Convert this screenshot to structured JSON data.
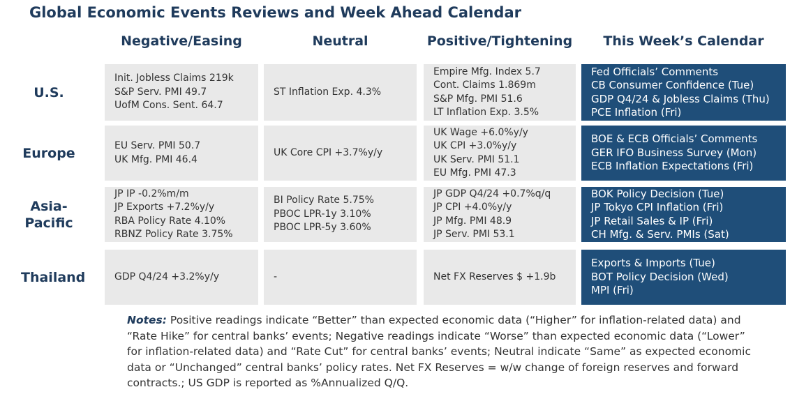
{
  "title": "Global Economic Events Reviews and Week Ahead Calendar",
  "table": {
    "columns": [
      "Negative/Easing",
      "Neutral",
      "Positive/Tightening",
      "This Week’s Calendar"
    ],
    "rows": [
      {
        "region": "U.S.",
        "cells": [
          [
            "Init. Jobless Claims 219k",
            "S&P Serv. PMI 49.7",
            "UofM Cons. Sent. 64.7"
          ],
          [
            "ST Inflation Exp. 4.3%"
          ],
          [
            "Empire Mfg. Index 5.7",
            "Cont. Claims 1.869m",
            "S&P Mfg. PMI 51.6",
            "LT Inflation Exp. 3.5%"
          ],
          [
            "Fed Officials’ Comments",
            "CB Consumer Confidence (Tue)",
            "GDP Q4/24 & Jobless Claims (Thu)",
            "PCE Inflation (Fri)"
          ]
        ]
      },
      {
        "region": "Europe",
        "cells": [
          [
            "EU Serv. PMI 50.7",
            "UK Mfg. PMI 46.4"
          ],
          [
            "UK Core CPI +3.7%y/y"
          ],
          [
            "UK Wage +6.0%y/y",
            "UK CPI +3.0%y/y",
            "UK Serv. PMI 51.1",
            "EU Mfg. PMI 47.3"
          ],
          [
            "BOE & ECB Officials’ Comments",
            "GER IFO Business Survey (Mon)",
            "ECB Inflation Expectations (Fri)"
          ]
        ]
      },
      {
        "region": "Asia-Pacific",
        "cells": [
          [
            "JP IP -0.2%m/m",
            "JP Exports +7.2%y/y",
            "RBA Policy Rate 4.10%",
            "RBNZ Policy Rate 3.75%"
          ],
          [
            "BI Policy Rate 5.75%",
            "PBOC LPR-1y 3.10%",
            "PBOC LPR-5y 3.60%"
          ],
          [
            "JP GDP Q4/24 +0.7%q/q",
            "JP CPI +4.0%y/y",
            "JP Mfg. PMI 48.9",
            "JP Serv. PMI 53.1"
          ],
          [
            "BOK Policy Decision (Tue)",
            "JP Tokyo CPI Inflation (Fri)",
            "JP Retail Sales & IP (Fri)",
            "CH Mfg. & Serv. PMIs (Sat)"
          ]
        ]
      },
      {
        "region": "Thailand",
        "cells": [
          [
            "GDP Q4/24 +3.2%y/y"
          ],
          [
            "-"
          ],
          [
            "Net FX Reserves $ +1.9b"
          ],
          [
            "Exports & Imports (Tue)",
            "BOT Policy Decision (Wed)",
            "MPI (Fri)"
          ]
        ]
      }
    ]
  },
  "notes": {
    "label": "Notes:",
    "text": " Positive readings indicate “Better” than expected economic data (“Higher” for inflation-related data) and “Rate Hike” for central banks’ events; Negative readings indicate “Worse” than expected economic data (“Lower” for inflation-related data) and “Rate Cut” for central banks’ events; Neutral indicate “Same” as expected economic data or “Unchanged” central banks’ policy rates. Net FX Reserves = w/w change of foreign reserves and forward contracts.; US GDP is reported as %Annualized Q/Q."
  }
}
